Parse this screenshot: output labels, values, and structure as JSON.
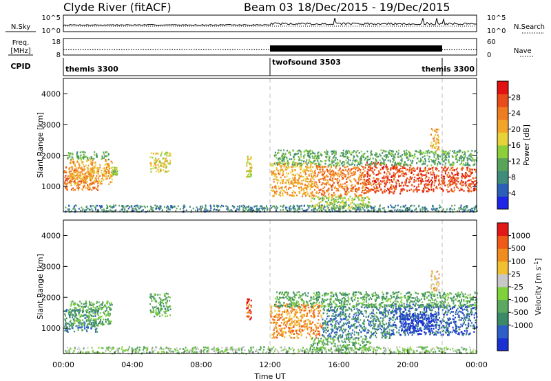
{
  "header": {
    "station": "Clyde River (fitACF)",
    "beam": "Beam 03",
    "date_range": "18/Dec/2015 - 19/Dec/2015"
  },
  "top_panels": {
    "nsky_label": "N.Sky",
    "nsearch_label": "N.Search",
    "nsky_ticks": [
      "10^5",
      "10^0"
    ],
    "nsearch_ticks": [
      "10^5",
      "10^0"
    ],
    "freq_label": "Freq.",
    "freq_unit": "[MHz]",
    "freq_ticks": [
      "18",
      "8"
    ],
    "nave_label": "Nave",
    "nave_ticks": [
      "60",
      "0"
    ],
    "cpid_label": "CPID"
  },
  "cpid_segments": [
    {
      "label": "themis 3300",
      "start_hour": 0,
      "end_hour": 12
    },
    {
      "label": "twofsound 3503",
      "start_hour": 12,
      "end_hour": 22
    },
    {
      "label": "themis 3300",
      "start_hour": 22,
      "end_hour": 24
    }
  ],
  "chart_data": [
    {
      "type": "heatmap",
      "name": "power",
      "ylabel": "Slant Range [km]",
      "y_ticks": [
        1000,
        2000,
        3000,
        4000
      ],
      "ylim": [
        180,
        4500
      ],
      "colorbar": {
        "label": "Power [dB]",
        "ticks": [
          4,
          8,
          12,
          16,
          20,
          24,
          28
        ],
        "range": [
          0,
          32
        ],
        "colors": [
          "#1f25e6",
          "#2b5fb8",
          "#3f8c7a",
          "#5aa35a",
          "#8ccf3a",
          "#e7d23a",
          "#f3a52a",
          "#ee7c20",
          "#ea4b1a",
          "#e01212"
        ]
      },
      "echo_regions": [
        {
          "h0": 0.0,
          "h1": 2.0,
          "r0": 900,
          "r1": 1650,
          "v": 26
        },
        {
          "h0": 0.3,
          "h1": 2.8,
          "r0": 1100,
          "r1": 1900,
          "v": 20
        },
        {
          "h0": 0.2,
          "h1": 2.6,
          "r0": 1900,
          "r1": 2150,
          "v": 10
        },
        {
          "h0": 2.8,
          "h1": 3.1,
          "r0": 1400,
          "r1": 1650,
          "v": 14
        },
        {
          "h0": 5.0,
          "h1": 6.2,
          "r0": 1500,
          "r1": 2150,
          "v": 18
        },
        {
          "h0": 10.6,
          "h1": 10.9,
          "r0": 1300,
          "r1": 2000,
          "v": 16
        },
        {
          "h0": 12.0,
          "h1": 14.5,
          "r0": 700,
          "r1": 1800,
          "v": 22
        },
        {
          "h0": 14.5,
          "h1": 17.5,
          "r0": 700,
          "r1": 1700,
          "v": 24
        },
        {
          "h0": 17.5,
          "h1": 20.2,
          "r0": 800,
          "r1": 1800,
          "v": 27
        },
        {
          "h0": 20.2,
          "h1": 24.0,
          "r0": 850,
          "r1": 1650,
          "v": 28
        },
        {
          "h0": 12.2,
          "h1": 24.0,
          "r0": 1700,
          "r1": 2200,
          "v": 12
        },
        {
          "h0": 0.0,
          "h1": 24.0,
          "r0": 200,
          "r1": 420,
          "v": 6
        },
        {
          "h0": 14.3,
          "h1": 17.8,
          "r0": 300,
          "r1": 700,
          "v": 14
        },
        {
          "h0": 21.3,
          "h1": 21.8,
          "r0": 2200,
          "r1": 2900,
          "v": 20
        }
      ]
    },
    {
      "type": "heatmap",
      "name": "velocity",
      "ylabel": "Slant Range [km]",
      "y_ticks": [
        1000,
        2000,
        3000,
        4000
      ],
      "ylim": [
        180,
        4500
      ],
      "x_ticks": [
        "00:00",
        "04:00",
        "08:00",
        "12:00",
        "16:00",
        "20:00",
        "00:00"
      ],
      "xlim_hours": [
        0,
        24
      ],
      "xlabel": "Time UT",
      "colorbar": {
        "label": "Velocity [m s",
        "label_superscript": "-1",
        "label_close": "]",
        "ticks": [
          "1000",
          "500",
          "100",
          "25",
          "-25",
          "-100",
          "-500",
          "-1000"
        ],
        "colors": [
          "#1a30d0",
          "#2e5fc8",
          "#3a8a68",
          "#5ca860",
          "#7ed23a",
          "#c8c8c8",
          "#f0c030",
          "#f08c20",
          "#f05a18",
          "#e01818"
        ]
      },
      "echo_regions": [
        {
          "h0": 0.0,
          "h1": 2.0,
          "r0": 900,
          "r1": 1650,
          "v": 2
        },
        {
          "h0": 0.3,
          "h1": 2.8,
          "r0": 1100,
          "r1": 1900,
          "v": 3
        },
        {
          "h0": 5.0,
          "h1": 6.2,
          "r0": 1400,
          "r1": 2150,
          "v": 3
        },
        {
          "h0": 10.6,
          "h1": 10.9,
          "r0": 1300,
          "r1": 2000,
          "v": 8
        },
        {
          "h0": 12.0,
          "h1": 15.0,
          "r0": 700,
          "r1": 1800,
          "v": 7
        },
        {
          "h0": 15.0,
          "h1": 19.0,
          "r0": 700,
          "r1": 1800,
          "v": 2
        },
        {
          "h0": 19.0,
          "h1": 24.0,
          "r0": 800,
          "r1": 1800,
          "v": 1
        },
        {
          "h0": 19.5,
          "h1": 21.5,
          "r0": 900,
          "r1": 1500,
          "v": 0
        },
        {
          "h0": 12.2,
          "h1": 24.0,
          "r0": 1700,
          "r1": 2200,
          "v": 3
        },
        {
          "h0": 0.0,
          "h1": 24.0,
          "r0": 200,
          "r1": 420,
          "v": 4
        },
        {
          "h0": 14.3,
          "h1": 17.8,
          "r0": 300,
          "r1": 700,
          "v": 3
        },
        {
          "h0": 21.3,
          "h1": 21.8,
          "r0": 2200,
          "r1": 2900,
          "v": 6
        }
      ]
    }
  ]
}
